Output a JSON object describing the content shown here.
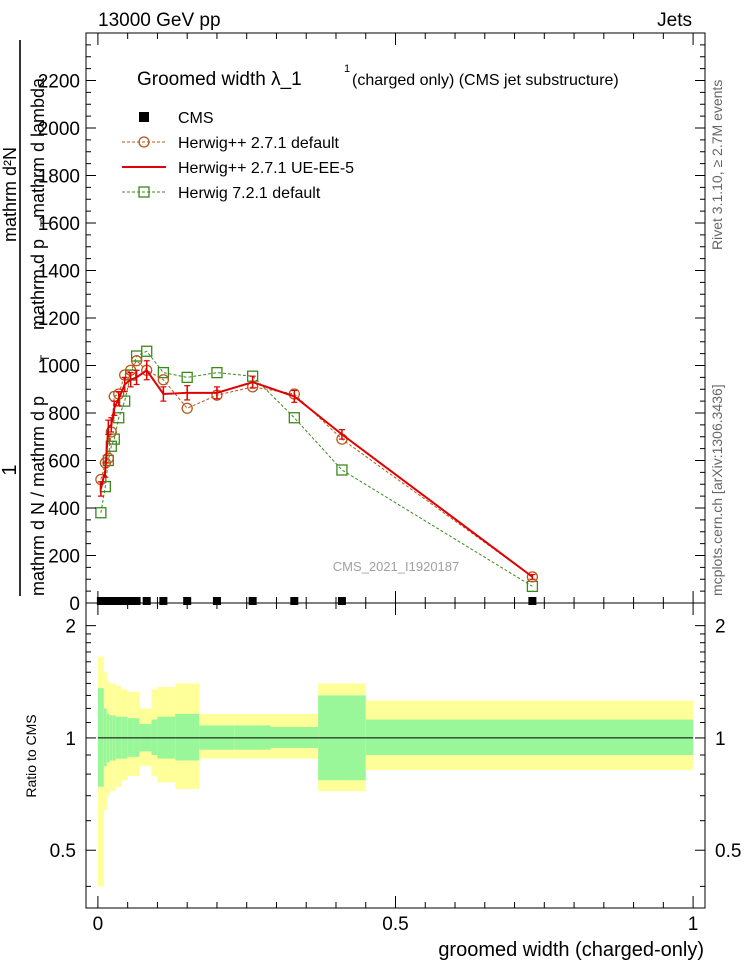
{
  "header": {
    "left": "13000 GeV pp",
    "right": "Jets"
  },
  "side_text": {
    "rivet": "Rivet 3.1.10, ≥ 2.7M events",
    "mcplots": "mcplots.cern.ch [arXiv:1306.3436]"
  },
  "watermark": "CMS_2021_I1920187",
  "ylabel": {
    "numerator_one": "1",
    "d2n": "mathrm d²N",
    "dpt": "mathrm d p",
    "dpt_sub": "T",
    "dlambda": "mathrm d lambda",
    "fraction_denominator": "mathrm d N / mathrm d p",
    "fraction_denominator_sub": "T"
  },
  "ratio_ylabel": "Ratio to CMS",
  "xlabel": "groomed width (charged-only)",
  "colors": {
    "cms": "#000000",
    "herwig271_default": "#b8561a",
    "herwig271_ueee5": "#e00000",
    "herwig721_default": "#3a8a1a",
    "band_inner": "#99f799",
    "band_outer": "#ffff99"
  },
  "chart_data": [
    {
      "type": "line",
      "title": "Groomed width  λ_1¹ (charged only) (CMS jet substructure)",
      "title_main": "Groomed width  λ_1",
      "title_sup": "1",
      "title_rest": "(charged only) (CMS jet substructure)",
      "xlim": [
        -0.02,
        1.02
      ],
      "ylim": [
        0,
        2400
      ],
      "yticks": [
        0,
        200,
        400,
        600,
        800,
        1000,
        1200,
        1400,
        1600,
        1800,
        2000,
        2200
      ],
      "ytick_labels": [
        "0",
        "200",
        "400",
        "600",
        "800",
        "1000",
        "1200",
        "1400",
        "1600",
        "1800",
        "2000",
        "2200"
      ],
      "legend_position": "top-left",
      "series": [
        {
          "name": "CMS",
          "marker": "filled-square",
          "x": [
            0.005,
            0.0125,
            0.0175,
            0.0225,
            0.0275,
            0.035,
            0.045,
            0.055,
            0.065,
            0.082,
            0.11,
            0.15,
            0.2,
            0.26,
            0.33,
            0.41,
            0.73
          ],
          "y": [
            0,
            0,
            0,
            0,
            0,
            0,
            0,
            0,
            0,
            0,
            0,
            0,
            0,
            0,
            0,
            0,
            0
          ]
        },
        {
          "name": "Herwig++ 2.7.1 default",
          "marker": "open-circle",
          "x": [
            0.005,
            0.0125,
            0.0175,
            0.0225,
            0.0275,
            0.035,
            0.045,
            0.055,
            0.065,
            0.082,
            0.11,
            0.15,
            0.2,
            0.26,
            0.33,
            0.41,
            0.73
          ],
          "y": [
            520,
            590,
            610,
            720,
            870,
            880,
            960,
            980,
            1020,
            980,
            940,
            820,
            875,
            910,
            880,
            690,
            110
          ]
        },
        {
          "name": "Herwig++ 2.7.1 UE-EE-5",
          "marker": "line-with-errors",
          "x": [
            0.005,
            0.0125,
            0.0175,
            0.0225,
            0.0275,
            0.035,
            0.045,
            0.055,
            0.065,
            0.082,
            0.11,
            0.15,
            0.2,
            0.26,
            0.33,
            0.41,
            0.73
          ],
          "y": [
            480,
            560,
            740,
            750,
            820,
            860,
            920,
            940,
            950,
            980,
            880,
            885,
            885,
            930,
            870,
            710,
            110
          ],
          "err": [
            30,
            30,
            30,
            30,
            30,
            30,
            30,
            30,
            30,
            40,
            30,
            30,
            25,
            25,
            25,
            20,
            10
          ]
        },
        {
          "name": "Herwig 7.2.1 default",
          "marker": "open-square",
          "x": [
            0.005,
            0.0125,
            0.0175,
            0.0225,
            0.0275,
            0.035,
            0.045,
            0.055,
            0.065,
            0.082,
            0.11,
            0.15,
            0.2,
            0.26,
            0.33,
            0.41,
            0.73
          ],
          "y": [
            380,
            490,
            600,
            660,
            690,
            780,
            850,
            960,
            1040,
            1060,
            970,
            950,
            970,
            955,
            780,
            560,
            70
          ]
        }
      ]
    },
    {
      "type": "area",
      "xlim": [
        -0.02,
        1.02
      ],
      "ylim": [
        0.35,
        2.3
      ],
      "yscale": "log",
      "yticks": [
        0.5,
        1,
        2
      ],
      "ytick_labels": [
        "0.5",
        "1",
        "2"
      ],
      "xticks": [
        0,
        0.5,
        1
      ],
      "xtick_labels": [
        "0",
        "0.5",
        "1"
      ],
      "bins": [
        0,
        0.01,
        0.015,
        0.02,
        0.025,
        0.03,
        0.04,
        0.05,
        0.06,
        0.07,
        0.075,
        0.09,
        0.1,
        0.13,
        0.17,
        0.23,
        0.29,
        0.37,
        0.45,
        1.0
      ],
      "inner_lo": [
        0.74,
        0.84,
        0.86,
        0.87,
        0.87,
        0.88,
        0.88,
        0.89,
        0.89,
        0.92,
        0.92,
        0.9,
        0.88,
        0.87,
        0.93,
        0.93,
        0.94,
        0.77,
        0.9
      ],
      "inner_hi": [
        1.36,
        1.2,
        1.16,
        1.15,
        1.15,
        1.14,
        1.14,
        1.13,
        1.13,
        1.09,
        1.09,
        1.12,
        1.14,
        1.16,
        1.08,
        1.08,
        1.07,
        1.3,
        1.12
      ],
      "outer_lo": [
        0.4,
        0.64,
        0.7,
        0.72,
        0.72,
        0.74,
        0.77,
        0.79,
        0.79,
        0.84,
        0.84,
        0.79,
        0.76,
        0.73,
        0.88,
        0.88,
        0.88,
        0.72,
        0.82
      ],
      "outer_hi": [
        1.65,
        1.5,
        1.42,
        1.4,
        1.4,
        1.38,
        1.35,
        1.33,
        1.33,
        1.2,
        1.2,
        1.35,
        1.37,
        1.4,
        1.16,
        1.16,
        1.16,
        1.4,
        1.26
      ],
      "reference": 1
    }
  ]
}
